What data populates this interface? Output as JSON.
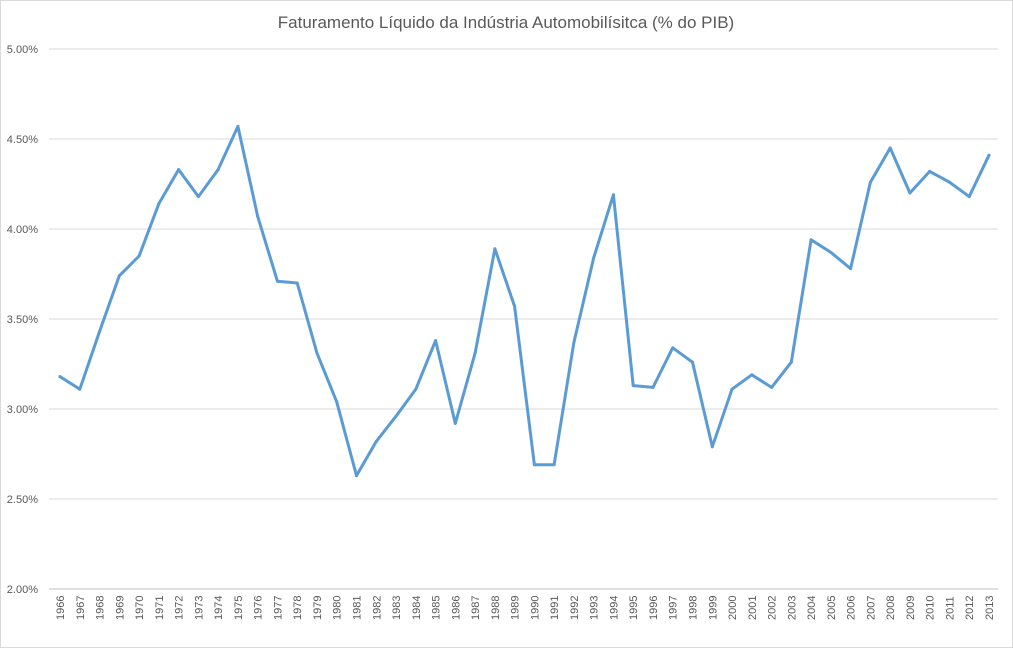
{
  "chart_data": {
    "type": "line",
    "title": "Faturamento Líquido da Indústria Automobilísitca (% do PIB)",
    "xlabel": "",
    "ylabel": "",
    "ylim": [
      2.0,
      5.0
    ],
    "yticks": [
      "2.00%",
      "2.50%",
      "3.00%",
      "3.50%",
      "4.00%",
      "4.50%",
      "5.00%"
    ],
    "ytick_values": [
      2.0,
      2.5,
      3.0,
      3.5,
      4.0,
      4.5,
      5.0
    ],
    "grid": true,
    "legend": "none",
    "color": "#5b9bd5",
    "categories": [
      "1966",
      "1967",
      "1968",
      "1969",
      "1970",
      "1971",
      "1972",
      "1973",
      "1974",
      "1975",
      "1976",
      "1977",
      "1978",
      "1979",
      "1980",
      "1981",
      "1982",
      "1983",
      "1984",
      "1985",
      "1986",
      "1987",
      "1988",
      "1989",
      "1990",
      "1991",
      "1992",
      "1993",
      "1994",
      "1995",
      "1996",
      "1997",
      "1998",
      "1999",
      "2000",
      "2001",
      "2002",
      "2003",
      "2004",
      "2005",
      "2006",
      "2007",
      "2008",
      "2009",
      "2010",
      "2011",
      "2012",
      "2013"
    ],
    "series": [
      {
        "values": [
          3.18,
          3.11,
          3.43,
          3.74,
          3.85,
          4.14,
          4.33,
          4.18,
          4.33,
          4.57,
          4.07,
          3.71,
          3.7,
          3.31,
          3.04,
          2.63,
          2.82,
          2.96,
          3.11,
          3.38,
          2.92,
          3.31,
          3.89,
          3.57,
          2.69,
          2.69,
          3.37,
          3.84,
          4.19,
          3.13,
          3.12,
          3.34,
          3.26,
          2.79,
          3.11,
          3.19,
          3.12,
          3.26,
          3.94,
          3.87,
          3.78,
          4.26,
          4.45,
          4.2,
          4.32,
          4.26,
          4.18,
          4.41
        ]
      }
    ]
  }
}
